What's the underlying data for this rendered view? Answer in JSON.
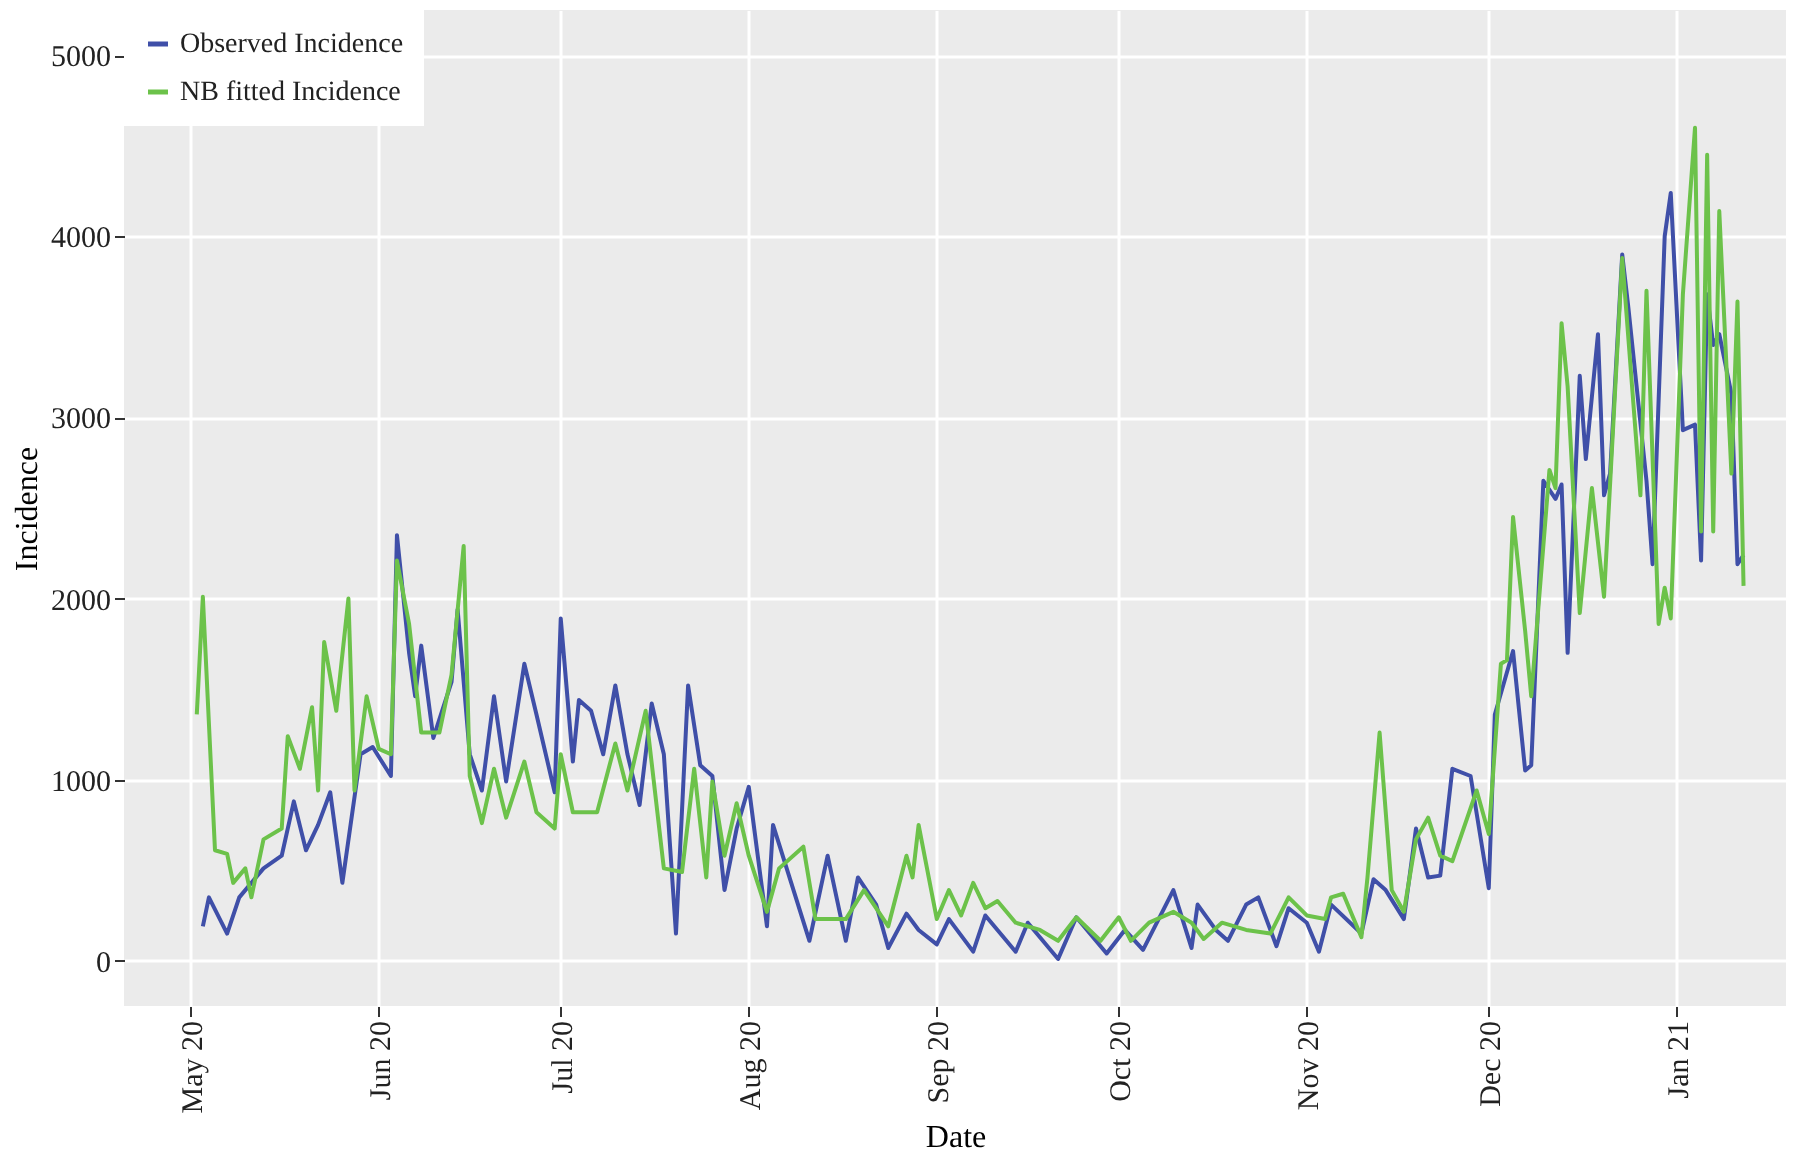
{
  "chart_data": {
    "type": "line",
    "xlabel": "Date",
    "ylabel": "Incidence",
    "xlim": [
      "2020-04-20",
      "2021-01-19"
    ],
    "ylim": [
      -250,
      5250
    ],
    "xticks": [
      {
        "value": "2020-05-01",
        "label": "May 20"
      },
      {
        "value": "2020-06-01",
        "label": "Jun 20"
      },
      {
        "value": "2020-07-01",
        "label": "Jul 20"
      },
      {
        "value": "2020-08-01",
        "label": "Aug 20"
      },
      {
        "value": "2020-09-01",
        "label": "Sep 20"
      },
      {
        "value": "2020-10-01",
        "label": "Oct 20"
      },
      {
        "value": "2020-11-01",
        "label": "Nov 20"
      },
      {
        "value": "2020-12-01",
        "label": "Dec 20"
      },
      {
        "value": "2021-01-01",
        "label": "Jan 21"
      }
    ],
    "yticks": [
      0,
      1000,
      2000,
      3000,
      4000,
      5000
    ],
    "grid": true,
    "legend": "top left",
    "line_style": "solid",
    "marker": "none",
    "series": [
      {
        "name": "Observed Incidence",
        "color": "#3f4fa8",
        "x": [
          "2020-05-03",
          "2020-05-04",
          "2020-05-07",
          "2020-05-09",
          "2020-05-13",
          "2020-05-16",
          "2020-05-18",
          "2020-05-20",
          "2020-05-22",
          "2020-05-24",
          "2020-05-26",
          "2020-05-29",
          "2020-05-31",
          "2020-06-03",
          "2020-06-04",
          "2020-06-06",
          "2020-06-07",
          "2020-06-08",
          "2020-06-10",
          "2020-06-13",
          "2020-06-14",
          "2020-06-16",
          "2020-06-18",
          "2020-06-20",
          "2020-06-22",
          "2020-06-25",
          "2020-06-27",
          "2020-06-30",
          "2020-07-01",
          "2020-07-03",
          "2020-07-04",
          "2020-07-06",
          "2020-07-08",
          "2020-07-10",
          "2020-07-12",
          "2020-07-14",
          "2020-07-16",
          "2020-07-18",
          "2020-07-20",
          "2020-07-22",
          "2020-07-24",
          "2020-07-26",
          "2020-07-28",
          "2020-07-30",
          "2020-08-01",
          "2020-08-04",
          "2020-08-05",
          "2020-08-08",
          "2020-08-11",
          "2020-08-14",
          "2020-08-17",
          "2020-08-19",
          "2020-08-22",
          "2020-08-24",
          "2020-08-27",
          "2020-08-29",
          "2020-09-01",
          "2020-09-03",
          "2020-09-07",
          "2020-09-09",
          "2020-09-14",
          "2020-09-16",
          "2020-09-21",
          "2020-09-24",
          "2020-09-29",
          "2020-10-02",
          "2020-10-05",
          "2020-10-10",
          "2020-10-13",
          "2020-10-14",
          "2020-10-17",
          "2020-10-19",
          "2020-10-22",
          "2020-10-24",
          "2020-10-27",
          "2020-10-29",
          "2020-11-01",
          "2020-11-03",
          "2020-11-05",
          "2020-11-10",
          "2020-11-12",
          "2020-11-14",
          "2020-11-17",
          "2020-11-19",
          "2020-11-21",
          "2020-11-23",
          "2020-11-25",
          "2020-11-28",
          "2020-12-01",
          "2020-12-02",
          "2020-12-05",
          "2020-12-07",
          "2020-12-08",
          "2020-12-10",
          "2020-12-12",
          "2020-12-13",
          "2020-12-14",
          "2020-12-16",
          "2020-12-17",
          "2020-12-19",
          "2020-12-20",
          "2020-12-21",
          "2020-12-23",
          "2020-12-24",
          "2020-12-27",
          "2020-12-28",
          "2020-12-30",
          "2020-12-31",
          "2021-01-02",
          "2021-01-04",
          "2021-01-05",
          "2021-01-06",
          "2021-01-07",
          "2021-01-08",
          "2021-01-10",
          "2021-01-11",
          "2021-01-12"
        ],
        "values": [
          190,
          350,
          150,
          350,
          510,
          580,
          880,
          610,
          750,
          930,
          430,
          1140,
          1180,
          1020,
          2350,
          1700,
          1460,
          1740,
          1230,
          1540,
          1940,
          1140,
          940,
          1460,
          990,
          1640,
          1360,
          930,
          1890,
          1100,
          1440,
          1380,
          1140,
          1520,
          1140,
          860,
          1420,
          1140,
          150,
          1520,
          1080,
          1020,
          390,
          730,
          960,
          190,
          750,
          430,
          110,
          580,
          110,
          460,
          310,
          70,
          260,
          170,
          90,
          230,
          50,
          250,
          50,
          210,
          10,
          240,
          40,
          170,
          60,
          390,
          70,
          310,
          170,
          110,
          310,
          350,
          80,
          290,
          210,
          50,
          310,
          150,
          450,
          390,
          230,
          730,
          460,
          470,
          1060,
          1020,
          400,
          1360,
          1710,
          1050,
          1080,
          2650,
          2550,
          2630,
          1700,
          3230,
          2770,
          3460,
          2570,
          2690,
          3900,
          3610,
          2650,
          2190,
          4000,
          4240,
          2930,
          2960,
          2210,
          3680,
          3400,
          3460,
          3130,
          2190,
          2240
        ]
      },
      {
        "name": "NB fitted Incidence",
        "color": "#6cc24a",
        "x": [
          "2020-05-02",
          "2020-05-03",
          "2020-05-05",
          "2020-05-07",
          "2020-05-08",
          "2020-05-10",
          "2020-05-11",
          "2020-05-13",
          "2020-05-16",
          "2020-05-17",
          "2020-05-19",
          "2020-05-21",
          "2020-05-22",
          "2020-05-23",
          "2020-05-25",
          "2020-05-27",
          "2020-05-28",
          "2020-05-30",
          "2020-06-01",
          "2020-06-03",
          "2020-06-04",
          "2020-06-06",
          "2020-06-08",
          "2020-06-11",
          "2020-06-13",
          "2020-06-15",
          "2020-06-16",
          "2020-06-18",
          "2020-06-20",
          "2020-06-22",
          "2020-06-25",
          "2020-06-27",
          "2020-06-30",
          "2020-07-01",
          "2020-07-03",
          "2020-07-07",
          "2020-07-10",
          "2020-07-12",
          "2020-07-15",
          "2020-07-18",
          "2020-07-21",
          "2020-07-23",
          "2020-07-25",
          "2020-07-26",
          "2020-07-28",
          "2020-07-30",
          "2020-08-01",
          "2020-08-04",
          "2020-08-06",
          "2020-08-10",
          "2020-08-12",
          "2020-08-17",
          "2020-08-20",
          "2020-08-22",
          "2020-08-24",
          "2020-08-27",
          "2020-08-28",
          "2020-08-29",
          "2020-09-01",
          "2020-09-03",
          "2020-09-05",
          "2020-09-07",
          "2020-09-09",
          "2020-09-11",
          "2020-09-14",
          "2020-09-18",
          "2020-09-21",
          "2020-09-24",
          "2020-09-28",
          "2020-10-01",
          "2020-10-03",
          "2020-10-06",
          "2020-10-10",
          "2020-10-13",
          "2020-10-15",
          "2020-10-18",
          "2020-10-22",
          "2020-10-26",
          "2020-10-29",
          "2020-11-01",
          "2020-11-04",
          "2020-11-05",
          "2020-11-07",
          "2020-11-10",
          "2020-11-11",
          "2020-11-13",
          "2020-11-15",
          "2020-11-17",
          "2020-11-19",
          "2020-11-21",
          "2020-11-23",
          "2020-11-25",
          "2020-11-29",
          "2020-12-01",
          "2020-12-03",
          "2020-12-04",
          "2020-12-05",
          "2020-12-07",
          "2020-12-08",
          "2020-12-11",
          "2020-12-12",
          "2020-12-13",
          "2020-12-14",
          "2020-12-16",
          "2020-12-18",
          "2020-12-20",
          "2020-12-23",
          "2020-12-26",
          "2020-12-27",
          "2020-12-29",
          "2020-12-30",
          "2020-12-31",
          "2021-01-02",
          "2021-01-04",
          "2021-01-05",
          "2021-01-06",
          "2021-01-07",
          "2021-01-08",
          "2021-01-10",
          "2021-01-11",
          "2021-01-12"
        ],
        "values": [
          1360,
          2010,
          610,
          590,
          430,
          510,
          350,
          670,
          730,
          1240,
          1060,
          1400,
          940,
          1760,
          1380,
          2000,
          940,
          1460,
          1170,
          1140,
          2210,
          1860,
          1260,
          1260,
          1580,
          2290,
          1020,
          760,
          1060,
          790,
          1100,
          820,
          730,
          1140,
          820,
          820,
          1200,
          940,
          1380,
          510,
          490,
          1060,
          460,
          990,
          580,
          870,
          580,
          270,
          510,
          630,
          230,
          230,
          390,
          290,
          190,
          580,
          460,
          750,
          230,
          390,
          250,
          430,
          290,
          330,
          210,
          170,
          110,
          240,
          110,
          240,
          110,
          210,
          270,
          210,
          120,
          210,
          170,
          150,
          350,
          250,
          230,
          350,
          370,
          130,
          460,
          1260,
          390,
          270,
          670,
          790,
          580,
          550,
          940,
          700,
          1640,
          1660,
          2450,
          1820,
          1460,
          2710,
          2610,
          3520,
          3170,
          1920,
          2610,
          2010,
          3880,
          2570,
          3700,
          1860,
          2060,
          1890,
          3680,
          4600,
          2370,
          4450,
          2370,
          4140,
          2690,
          3640,
          2070
        ]
      }
    ]
  }
}
